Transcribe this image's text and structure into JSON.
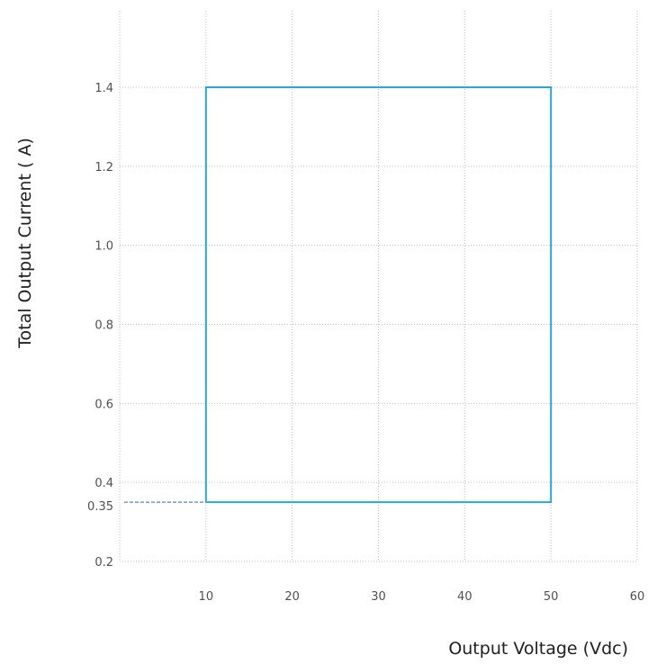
{
  "chart_data": {
    "type": "line",
    "title": "",
    "xlabel": "Output Voltage (Vdc)",
    "ylabel": "Total Output Current ( A)",
    "xlim": [
      0,
      60
    ],
    "ylim": [
      0.2,
      1.6
    ],
    "x_ticks": [
      "10",
      "20",
      "30",
      "40",
      "50",
      "60"
    ],
    "y_ticks": [
      "0.2",
      "0.4",
      "0.6",
      "0.8",
      "1.0",
      "1.2",
      "1.4"
    ],
    "grid": true,
    "legend": "none",
    "series": [
      {
        "color": "#2ea4dd",
        "points": [
          {
            "x": 10,
            "y": 0.35
          },
          {
            "x": 10,
            "y": 1.4
          },
          {
            "x": 50,
            "y": 1.4
          },
          {
            "x": 50,
            "y": 0.35
          },
          {
            "x": 10,
            "y": 0.35
          }
        ]
      }
    ],
    "annotations": [
      {
        "label": "0.35",
        "y": 0.35,
        "to_x": 10,
        "style": "dashed"
      }
    ]
  }
}
